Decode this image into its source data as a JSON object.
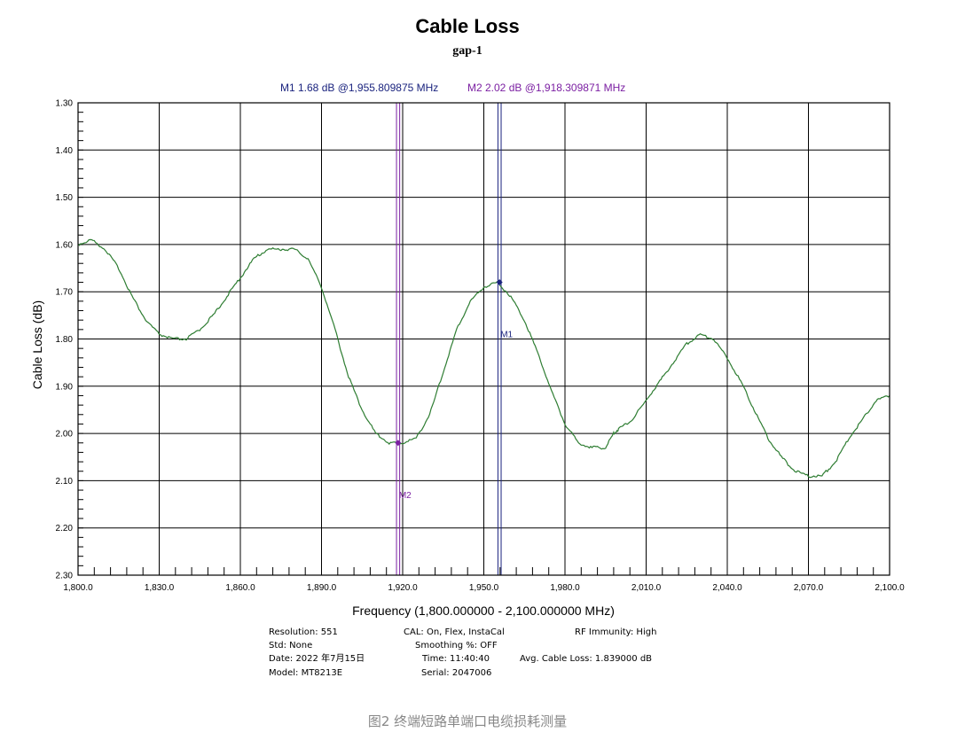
{
  "chart_data": {
    "type": "line",
    "title": "Cable Loss",
    "subtitle": "gap-1",
    "xlabel": "Frequency (1,800.000000 - 2,100.000000 MHz)",
    "ylabel": "Cable Loss (dB)",
    "xlim": [
      1800,
      2100
    ],
    "ylim": [
      1.3,
      2.3
    ],
    "y_inverted": true,
    "grid": true,
    "x_ticks": [
      1800,
      1830,
      1860,
      1890,
      1920,
      1950,
      1980,
      2010,
      2040,
      2070,
      2100
    ],
    "x_tick_labels": [
      "1,800.0",
      "1,830.0",
      "1,860.0",
      "1,890.0",
      "1,920.0",
      "1,950.0",
      "1,980.0",
      "2,010.0",
      "2,040.0",
      "2,070.0",
      "2,100.0"
    ],
    "y_ticks": [
      1.3,
      1.4,
      1.5,
      1.6,
      1.7,
      1.8,
      1.9,
      2.0,
      2.1,
      2.2,
      2.3
    ],
    "y_tick_labels": [
      "1.30",
      "1.40",
      "1.50",
      "1.60",
      "1.70",
      "1.80",
      "1.90",
      "2.00",
      "2.10",
      "2.20",
      "2.30"
    ],
    "series": [
      {
        "color": "#2e7d32",
        "x": [
          1800,
          1805,
          1810,
          1815,
          1820,
          1825,
          1830,
          1835,
          1840,
          1845,
          1850,
          1855,
          1860,
          1865,
          1870,
          1875,
          1880,
          1885,
          1890,
          1895,
          1900,
          1905,
          1910,
          1915,
          1920,
          1925,
          1930,
          1935,
          1940,
          1945,
          1950,
          1955,
          1960,
          1965,
          1970,
          1975,
          1980,
          1985,
          1990,
          1995,
          1998,
          2000,
          2005,
          2010,
          2015,
          2020,
          2025,
          2030,
          2035,
          2040,
          2045,
          2050,
          2055,
          2060,
          2065,
          2070,
          2075,
          2080,
          2085,
          2090,
          2095,
          2100
        ],
        "y": [
          1.6,
          1.59,
          1.61,
          1.65,
          1.71,
          1.76,
          1.79,
          1.8,
          1.8,
          1.78,
          1.75,
          1.71,
          1.67,
          1.63,
          1.61,
          1.61,
          1.61,
          1.63,
          1.69,
          1.78,
          1.88,
          1.95,
          2.0,
          2.02,
          2.02,
          2.01,
          1.96,
          1.87,
          1.78,
          1.72,
          1.69,
          1.68,
          1.71,
          1.76,
          1.83,
          1.91,
          1.98,
          2.02,
          2.03,
          2.03,
          2.0,
          1.99,
          1.97,
          1.93,
          1.89,
          1.85,
          1.81,
          1.79,
          1.8,
          1.84,
          1.89,
          1.95,
          2.01,
          2.05,
          2.08,
          2.09,
          2.09,
          2.06,
          2.01,
          1.97,
          1.93,
          1.92
        ]
      }
    ],
    "markers": [
      {
        "label": "M1",
        "x": 1955.809875,
        "y": 1.68,
        "color": "#1a237e"
      },
      {
        "label": "M2",
        "x": 1918.309871,
        "y": 2.02,
        "color": "#7b1fa2"
      }
    ],
    "marker_text": {
      "m1": "M1  1.68 dB @1,955.809875 MHz",
      "m2": "M2  2.02 dB @1,918.309871 MHz"
    }
  },
  "info": {
    "resolution": "Resolution: 551",
    "std": "Std: None",
    "date": "Date: 2022 年7月15日",
    "model": "Model: MT8213E",
    "cal": "CAL: On, Flex, InstaCal",
    "smoothing": "Smoothing %:  OFF",
    "time": "Time: 11:40:40",
    "serial": "Serial: 2047006",
    "rf_immunity": "RF Immunity: High",
    "avg_loss": "Avg. Cable Loss: 1.839000 dB"
  },
  "caption": "图2 终端短路单端口电缆损耗测量",
  "colors": {
    "trace": "#2e7d32",
    "m1": "#1a237e",
    "m2": "#7b1fa2",
    "caption": "#888888"
  }
}
